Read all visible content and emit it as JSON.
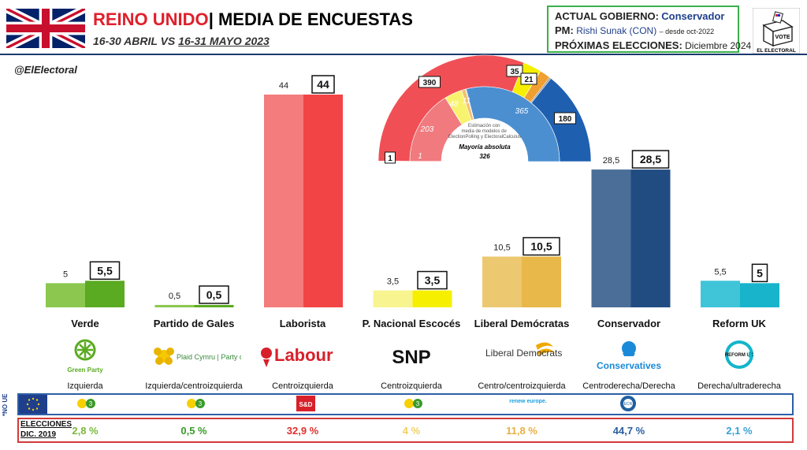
{
  "header": {
    "title_country": "REINO UNIDO",
    "title_rest": "| MEDIA DE ENCUESTAS",
    "subtitle_prefix": "16-30 ABRIL VS ",
    "subtitle_current": "16-31 MAYO 2023",
    "handle": "@ElElectoral"
  },
  "government": {
    "gov_label": "ACTUAL GOBIERNO:",
    "gov_value": "Conservador",
    "pm_label": "PM:",
    "pm_value": "Rishi Sunak (CON)",
    "pm_note": "– desde oct-2022",
    "next_label": "PRÓXIMAS ELECCIONES:",
    "next_value": "Diciembre 2024"
  },
  "logo": {
    "vote": "VOTE",
    "brand": "EL ELECTORAL"
  },
  "hemicycle": {
    "note": "Estimación con media de modelos de ElectionPolling y ElectoralCalculus",
    "majority_label": "Mayoría absoluta",
    "majority_value": "326",
    "seats_outer": [
      {
        "party": "Verde",
        "value": "1",
        "color": "#5cb030"
      },
      {
        "party": "Laborista",
        "value": "390",
        "color": "#f05055"
      },
      {
        "party": "SNP",
        "value": "35",
        "color": "#f6f000"
      },
      {
        "party": "Liberal Demócratas",
        "value": "21",
        "color": "#f0a030"
      },
      {
        "party": "Otros",
        "value": "",
        "color": "#8a8a8a"
      },
      {
        "party": "Conservador",
        "value": "180",
        "color": "#1f5fb0"
      }
    ],
    "seats_inner": [
      {
        "party": "Verde",
        "value": "1",
        "color": "#5cb030"
      },
      {
        "party": "Laborista",
        "value": "203",
        "color": "#f07a7e"
      },
      {
        "party": "SNP",
        "value": "48",
        "color": "#f8f36e"
      },
      {
        "party": "Liberal Demócratas",
        "value": "11",
        "color": "#f2c070"
      },
      {
        "party": "Otros",
        "value": "",
        "color": "#b0b0b0"
      },
      {
        "party": "Conservador",
        "value": "365",
        "color": "#4c8fd0"
      }
    ]
  },
  "chart_data": {
    "type": "bar",
    "title": "REINO UNIDO| MEDIA DE ENCUESTAS",
    "subtitle": "16-30 ABRIL VS 16-31 MAYO 2023",
    "categories": [
      "Verde",
      "Partido de Gales",
      "Laborista",
      "P. Nacional Escocés",
      "Liberal Demócratas",
      "Conservador",
      "Reform UK"
    ],
    "series": [
      {
        "values": [
          5,
          0.5,
          44,
          3.5,
          10.5,
          28.5,
          5.5
        ]
      },
      {
        "values": [
          5.5,
          0.5,
          44,
          3.5,
          10.5,
          28.5,
          5
        ]
      }
    ],
    "labels_previous": [
      "5",
      "0,5",
      "44",
      "3,5",
      "10,5",
      "28,5",
      "5,5"
    ],
    "labels_current": [
      "5,5",
      "0,5",
      "44",
      "3,5",
      "10,5",
      "28,5",
      "5"
    ],
    "colors_previous": [
      "#8cc850",
      "#8cc850",
      "#f47c7c",
      "#f8f590",
      "#ecc870",
      "#4a6e98",
      "#40c4d8"
    ],
    "colors_current": [
      "#5aaa22",
      "#5aaa22",
      "#f24444",
      "#f6f000",
      "#e8b84a",
      "#204c82",
      "#18b4cc"
    ],
    "ylim": [
      0,
      46
    ],
    "grid": false
  },
  "parties": [
    {
      "name": "Verde",
      "ideology": "Izquierda",
      "logo_text": "Green Party",
      "logo_color": "#5aaa22",
      "election_2019": "2,8 %",
      "pct_color": "#7ab83a"
    },
    {
      "name": "Partido de Gales",
      "ideology": "Izquierda/centroizquierda",
      "logo_text": "Plaid Cymru | Party of Wales",
      "logo_color": "#3a8a3a",
      "election_2019": "0,5 %",
      "pct_color": "#3a9a2a"
    },
    {
      "name": "Laborista",
      "ideology": "Centroizquierda",
      "logo_text": "Labour",
      "logo_color": "#d8202a",
      "election_2019": "32,9 %",
      "pct_color": "#e03030"
    },
    {
      "name": "P. Nacional Escocés",
      "ideology": "Centroizquierda",
      "logo_text": "SNP",
      "logo_color": "#111111",
      "election_2019": "4 %",
      "pct_color": "#f0d060"
    },
    {
      "name": "Liberal Demócratas",
      "ideology": "Centro/centroizquierda",
      "logo_text": "Liberal Democrats",
      "logo_color": "#333333",
      "election_2019": "11,8 %",
      "pct_color": "#e8b040"
    },
    {
      "name": "Conservador",
      "ideology": "Centroderecha/Derecha",
      "logo_text": "Conservatives",
      "logo_color": "#1a8ad8",
      "election_2019": "44,7 %",
      "pct_color": "#2a5fa0"
    },
    {
      "name": "Reform UK",
      "ideology": "Derecha/ultraderecha",
      "logo_text": "REFORM UK",
      "logo_color": "#12b5cb",
      "election_2019": "2,1 %",
      "pct_color": "#3aa0d8"
    }
  ],
  "eu_groups": {
    "noue_label": "*NO UE",
    "green_group": "3",
    "sd": "S&D",
    "renew": "renew europe.",
    "ecr": "ECR"
  },
  "elections": {
    "label_line1": "ELECCIONES",
    "label_line2": "DIC. 2019"
  }
}
